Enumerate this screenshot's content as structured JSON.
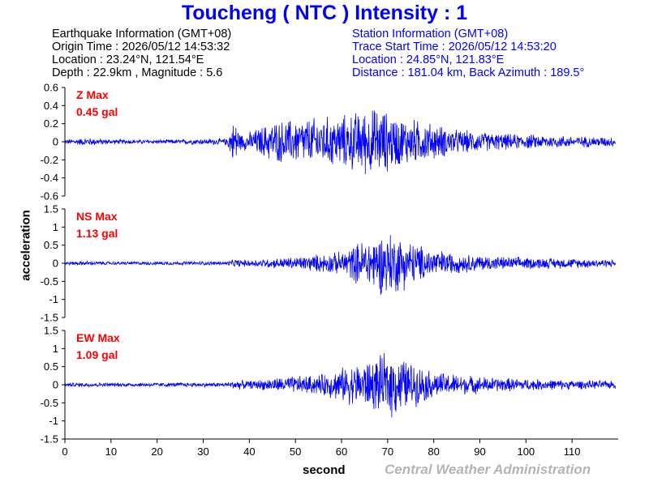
{
  "title": "Toucheng  ( NTC )  Intensity : 1",
  "earthquake": {
    "heading": "Earthquake Information  (GMT+08)",
    "origin_time": "Origin Time : 2026/05/12 14:53:32",
    "location": "Location : 23.24°N, 121.54°E",
    "depth_magnitude": "Depth : 22.9km , Magnitude : 5.6"
  },
  "station": {
    "heading": "Station Information  (GMT+08)",
    "trace_start": "Trace Start Time : 2026/05/12 14:53:20",
    "location": "Location : 24.85°N, 121.83°E",
    "distance": "Distance : 181.04 km, Back Azimuth : 189.5°"
  },
  "credit": "Central Weather Administration",
  "colors": {
    "trace": "#0000ff",
    "label": "#ff0000",
    "title": "#0000ff"
  },
  "chart_data": {
    "type": "line",
    "xlabel": "second",
    "ylabel": "acceleration",
    "xlim": [
      0,
      120
    ],
    "xticks": [
      0,
      10,
      20,
      30,
      40,
      50,
      60,
      70,
      80,
      90,
      100,
      110
    ],
    "panels": [
      {
        "component": "Z",
        "label": "Z Max",
        "max_text": "0.45 gal",
        "max_value": 0.45,
        "ylim": [
          -0.6,
          0.6
        ],
        "yticks": [
          -0.6,
          -0.4,
          -0.2,
          0,
          0.2,
          0.4,
          0.6
        ],
        "ytick_labels": [
          "-0.6",
          "-0.4",
          "-0.2",
          "0",
          "0.2",
          "0.4",
          "0.6"
        ],
        "envelope": [
          [
            0,
            0.03
          ],
          [
            5,
            0.05
          ],
          [
            10,
            0.03
          ],
          [
            20,
            0.025
          ],
          [
            35,
            0.04
          ],
          [
            37,
            0.3
          ],
          [
            38,
            0.1
          ],
          [
            40,
            0.12
          ],
          [
            45,
            0.25
          ],
          [
            50,
            0.28
          ],
          [
            55,
            0.3
          ],
          [
            60,
            0.32
          ],
          [
            65,
            0.4
          ],
          [
            68,
            0.42
          ],
          [
            72,
            0.32
          ],
          [
            78,
            0.25
          ],
          [
            85,
            0.15
          ],
          [
            95,
            0.1
          ],
          [
            110,
            0.07
          ],
          [
            119,
            0.06
          ]
        ]
      },
      {
        "component": "NS",
        "label": "NS Max",
        "max_text": "1.13 gal",
        "max_value": 1.13,
        "ylim": [
          -1.5,
          1.5
        ],
        "yticks": [
          -1.5,
          -1,
          -0.5,
          0,
          0.5,
          1,
          1.5
        ],
        "ytick_labels": [
          "-1.5",
          "-1",
          "-0.5",
          "0",
          "0.5",
          "1",
          "1.5"
        ],
        "envelope": [
          [
            0,
            0.05
          ],
          [
            5,
            0.07
          ],
          [
            10,
            0.05
          ],
          [
            35,
            0.06
          ],
          [
            37,
            0.12
          ],
          [
            40,
            0.1
          ],
          [
            50,
            0.2
          ],
          [
            60,
            0.35
          ],
          [
            65,
            0.75
          ],
          [
            70,
            1.0
          ],
          [
            72,
            0.9
          ],
          [
            78,
            0.5
          ],
          [
            85,
            0.3
          ],
          [
            95,
            0.2
          ],
          [
            110,
            0.15
          ],
          [
            119,
            0.12
          ]
        ]
      },
      {
        "component": "EW",
        "label": "EW Max",
        "max_text": "1.09 gal",
        "max_value": 1.09,
        "ylim": [
          -1.5,
          1.5
        ],
        "yticks": [
          -1.5,
          -1,
          -0.5,
          0,
          0.5,
          1,
          1.5
        ],
        "ytick_labels": [
          "-1.5",
          "-1",
          "-0.5",
          "0",
          "0.5",
          "1",
          "1.5"
        ],
        "envelope": [
          [
            0,
            0.06
          ],
          [
            5,
            0.07
          ],
          [
            10,
            0.06
          ],
          [
            35,
            0.07
          ],
          [
            37,
            0.15
          ],
          [
            40,
            0.12
          ],
          [
            48,
            0.25
          ],
          [
            55,
            0.3
          ],
          [
            62,
            0.6
          ],
          [
            67,
            0.8
          ],
          [
            71,
            1.0
          ],
          [
            75,
            0.7
          ],
          [
            80,
            0.4
          ],
          [
            90,
            0.25
          ],
          [
            100,
            0.18
          ],
          [
            110,
            0.14
          ],
          [
            119,
            0.12
          ]
        ]
      }
    ]
  }
}
